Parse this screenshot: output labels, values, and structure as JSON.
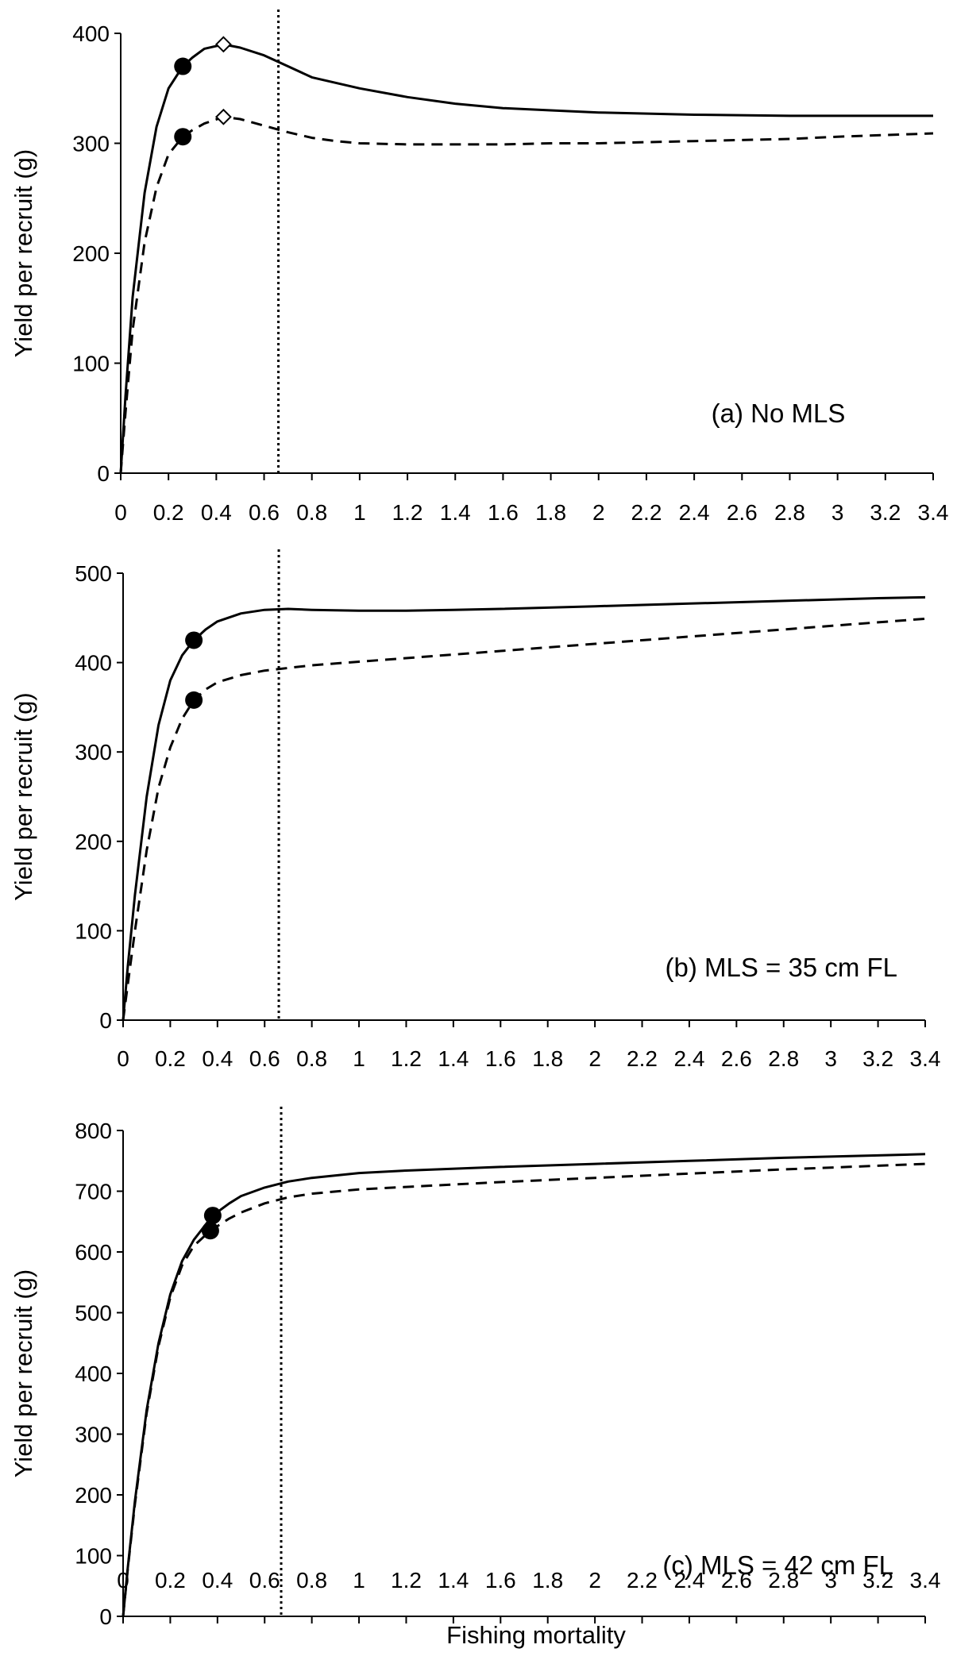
{
  "figure": {
    "xlabel": "Fishing mortality"
  },
  "chart_data": [
    {
      "type": "line",
      "panel_label": "(a) No MLS",
      "ylabel": "Yield per recruit (g)",
      "xlim": [
        0,
        3.4
      ],
      "ylim": [
        0,
        400
      ],
      "xticks": [
        "0",
        "0.2",
        "0.4",
        "0.6",
        "0.8",
        "1",
        "1.2",
        "1.4",
        "1.6",
        "1.8",
        "2",
        "2.2",
        "2.4",
        "2.6",
        "2.8",
        "3",
        "3.2",
        "3.4"
      ],
      "yticks": [
        "0",
        "100",
        "200",
        "300",
        "400"
      ],
      "vline_x": 0.66,
      "series": [
        {
          "name": "solid",
          "style": "solid",
          "x": [
            0,
            0.02,
            0.05,
            0.1,
            0.15,
            0.2,
            0.26,
            0.3,
            0.35,
            0.43,
            0.5,
            0.6,
            0.7,
            0.8,
            1.0,
            1.2,
            1.4,
            1.6,
            1.8,
            2.0,
            2.4,
            2.8,
            3.0,
            3.4
          ],
          "y": [
            0,
            70,
            160,
            255,
            315,
            350,
            370,
            378,
            386,
            390,
            387,
            380,
            370,
            360,
            350,
            342,
            336,
            332,
            330,
            328,
            326,
            325,
            325,
            325
          ],
          "markers": [
            {
              "x": 0.26,
              "y": 370,
              "symbol": "circle"
            },
            {
              "x": 0.43,
              "y": 390,
              "symbol": "diamond"
            }
          ]
        },
        {
          "name": "dashed",
          "style": "dashed",
          "x": [
            0,
            0.02,
            0.05,
            0.1,
            0.15,
            0.2,
            0.26,
            0.3,
            0.35,
            0.43,
            0.5,
            0.6,
            0.7,
            0.8,
            0.9,
            1.0,
            1.2,
            1.4,
            1.6,
            1.8,
            2.0,
            2.4,
            2.8,
            3.0,
            3.4
          ],
          "y": [
            0,
            55,
            130,
            210,
            260,
            290,
            306,
            312,
            318,
            324,
            322,
            316,
            310,
            305,
            302,
            300,
            299,
            299,
            299,
            300,
            300,
            302,
            304,
            306,
            309
          ],
          "markers": [
            {
              "x": 0.26,
              "y": 306,
              "symbol": "circle"
            },
            {
              "x": 0.43,
              "y": 324,
              "symbol": "diamond"
            }
          ]
        }
      ]
    },
    {
      "type": "line",
      "panel_label": "(b) MLS = 35 cm FL",
      "ylabel": "Yield per recruit (g)",
      "xlim": [
        0,
        3.4
      ],
      "ylim": [
        0,
        500
      ],
      "xticks": [
        "0",
        "0.2",
        "0.4",
        "0.6",
        "0.8",
        "1",
        "1.2",
        "1.4",
        "1.6",
        "1.8",
        "2",
        "2.2",
        "2.4",
        "2.6",
        "2.8",
        "3",
        "3.2",
        "3.4"
      ],
      "yticks": [
        "0",
        "100",
        "200",
        "300",
        "400",
        "500"
      ],
      "vline_x": 0.66,
      "series": [
        {
          "name": "solid",
          "style": "solid",
          "x": [
            0,
            0.02,
            0.05,
            0.1,
            0.15,
            0.2,
            0.25,
            0.3,
            0.35,
            0.4,
            0.5,
            0.6,
            0.7,
            0.8,
            1.0,
            1.2,
            1.4,
            1.6,
            2.0,
            2.4,
            2.8,
            3.2,
            3.4
          ],
          "y": [
            0,
            60,
            140,
            250,
            330,
            380,
            408,
            425,
            437,
            446,
            455,
            459,
            460,
            459,
            458,
            458,
            459,
            460,
            463,
            466,
            469,
            472,
            473
          ],
          "markers": [
            {
              "x": 0.3,
              "y": 425,
              "symbol": "circle"
            }
          ]
        },
        {
          "name": "dashed",
          "style": "dashed",
          "x": [
            0,
            0.02,
            0.05,
            0.1,
            0.15,
            0.2,
            0.25,
            0.3,
            0.35,
            0.4,
            0.5,
            0.6,
            0.7,
            0.8,
            1.0,
            1.2,
            1.6,
            2.0,
            2.4,
            2.8,
            3.2,
            3.4
          ],
          "y": [
            0,
            40,
            100,
            190,
            260,
            305,
            337,
            358,
            370,
            378,
            386,
            391,
            394,
            397,
            401,
            405,
            413,
            421,
            429,
            437,
            445,
            449
          ],
          "markers": [
            {
              "x": 0.3,
              "y": 358,
              "symbol": "circle"
            }
          ]
        }
      ]
    },
    {
      "type": "line",
      "panel_label": "(c) MLS = 42 cm FL",
      "ylabel": "Yield per recruit (g)",
      "xlim": [
        0,
        3.4
      ],
      "ylim": [
        0,
        800
      ],
      "xticks": [
        "0",
        "0.2",
        "0.4",
        "0.6",
        "0.8",
        "1",
        "1.2",
        "1.4",
        "1.6",
        "1.8",
        "2",
        "2.2",
        "2.4",
        "2.6",
        "2.8",
        "3",
        "3.2",
        "3.4"
      ],
      "yticks": [
        "0",
        "100",
        "200",
        "300",
        "400",
        "500",
        "600",
        "700",
        "800"
      ],
      "vline_x": 0.67,
      "series": [
        {
          "name": "solid",
          "style": "solid",
          "x": [
            0,
            0.02,
            0.05,
            0.1,
            0.15,
            0.2,
            0.25,
            0.3,
            0.38,
            0.45,
            0.5,
            0.6,
            0.7,
            0.8,
            1.0,
            1.2,
            1.6,
            2.0,
            2.4,
            2.8,
            3.2,
            3.4
          ],
          "y": [
            0,
            80,
            190,
            340,
            450,
            530,
            585,
            620,
            660,
            680,
            692,
            706,
            716,
            722,
            730,
            734,
            740,
            745,
            750,
            755,
            759,
            761
          ],
          "markers": [
            {
              "x": 0.38,
              "y": 660,
              "symbol": "circle"
            }
          ]
        },
        {
          "name": "dashed",
          "style": "dashed",
          "x": [
            0,
            0.02,
            0.05,
            0.1,
            0.15,
            0.2,
            0.25,
            0.3,
            0.37,
            0.45,
            0.5,
            0.6,
            0.7,
            0.8,
            1.0,
            1.2,
            1.6,
            2.0,
            2.4,
            2.8,
            3.2,
            3.4
          ],
          "y": [
            0,
            78,
            185,
            335,
            445,
            525,
            578,
            610,
            635,
            655,
            665,
            680,
            690,
            696,
            703,
            707,
            715,
            722,
            729,
            736,
            742,
            745
          ],
          "markers": [
            {
              "x": 0.37,
              "y": 635,
              "symbol": "circle"
            }
          ]
        }
      ]
    }
  ]
}
